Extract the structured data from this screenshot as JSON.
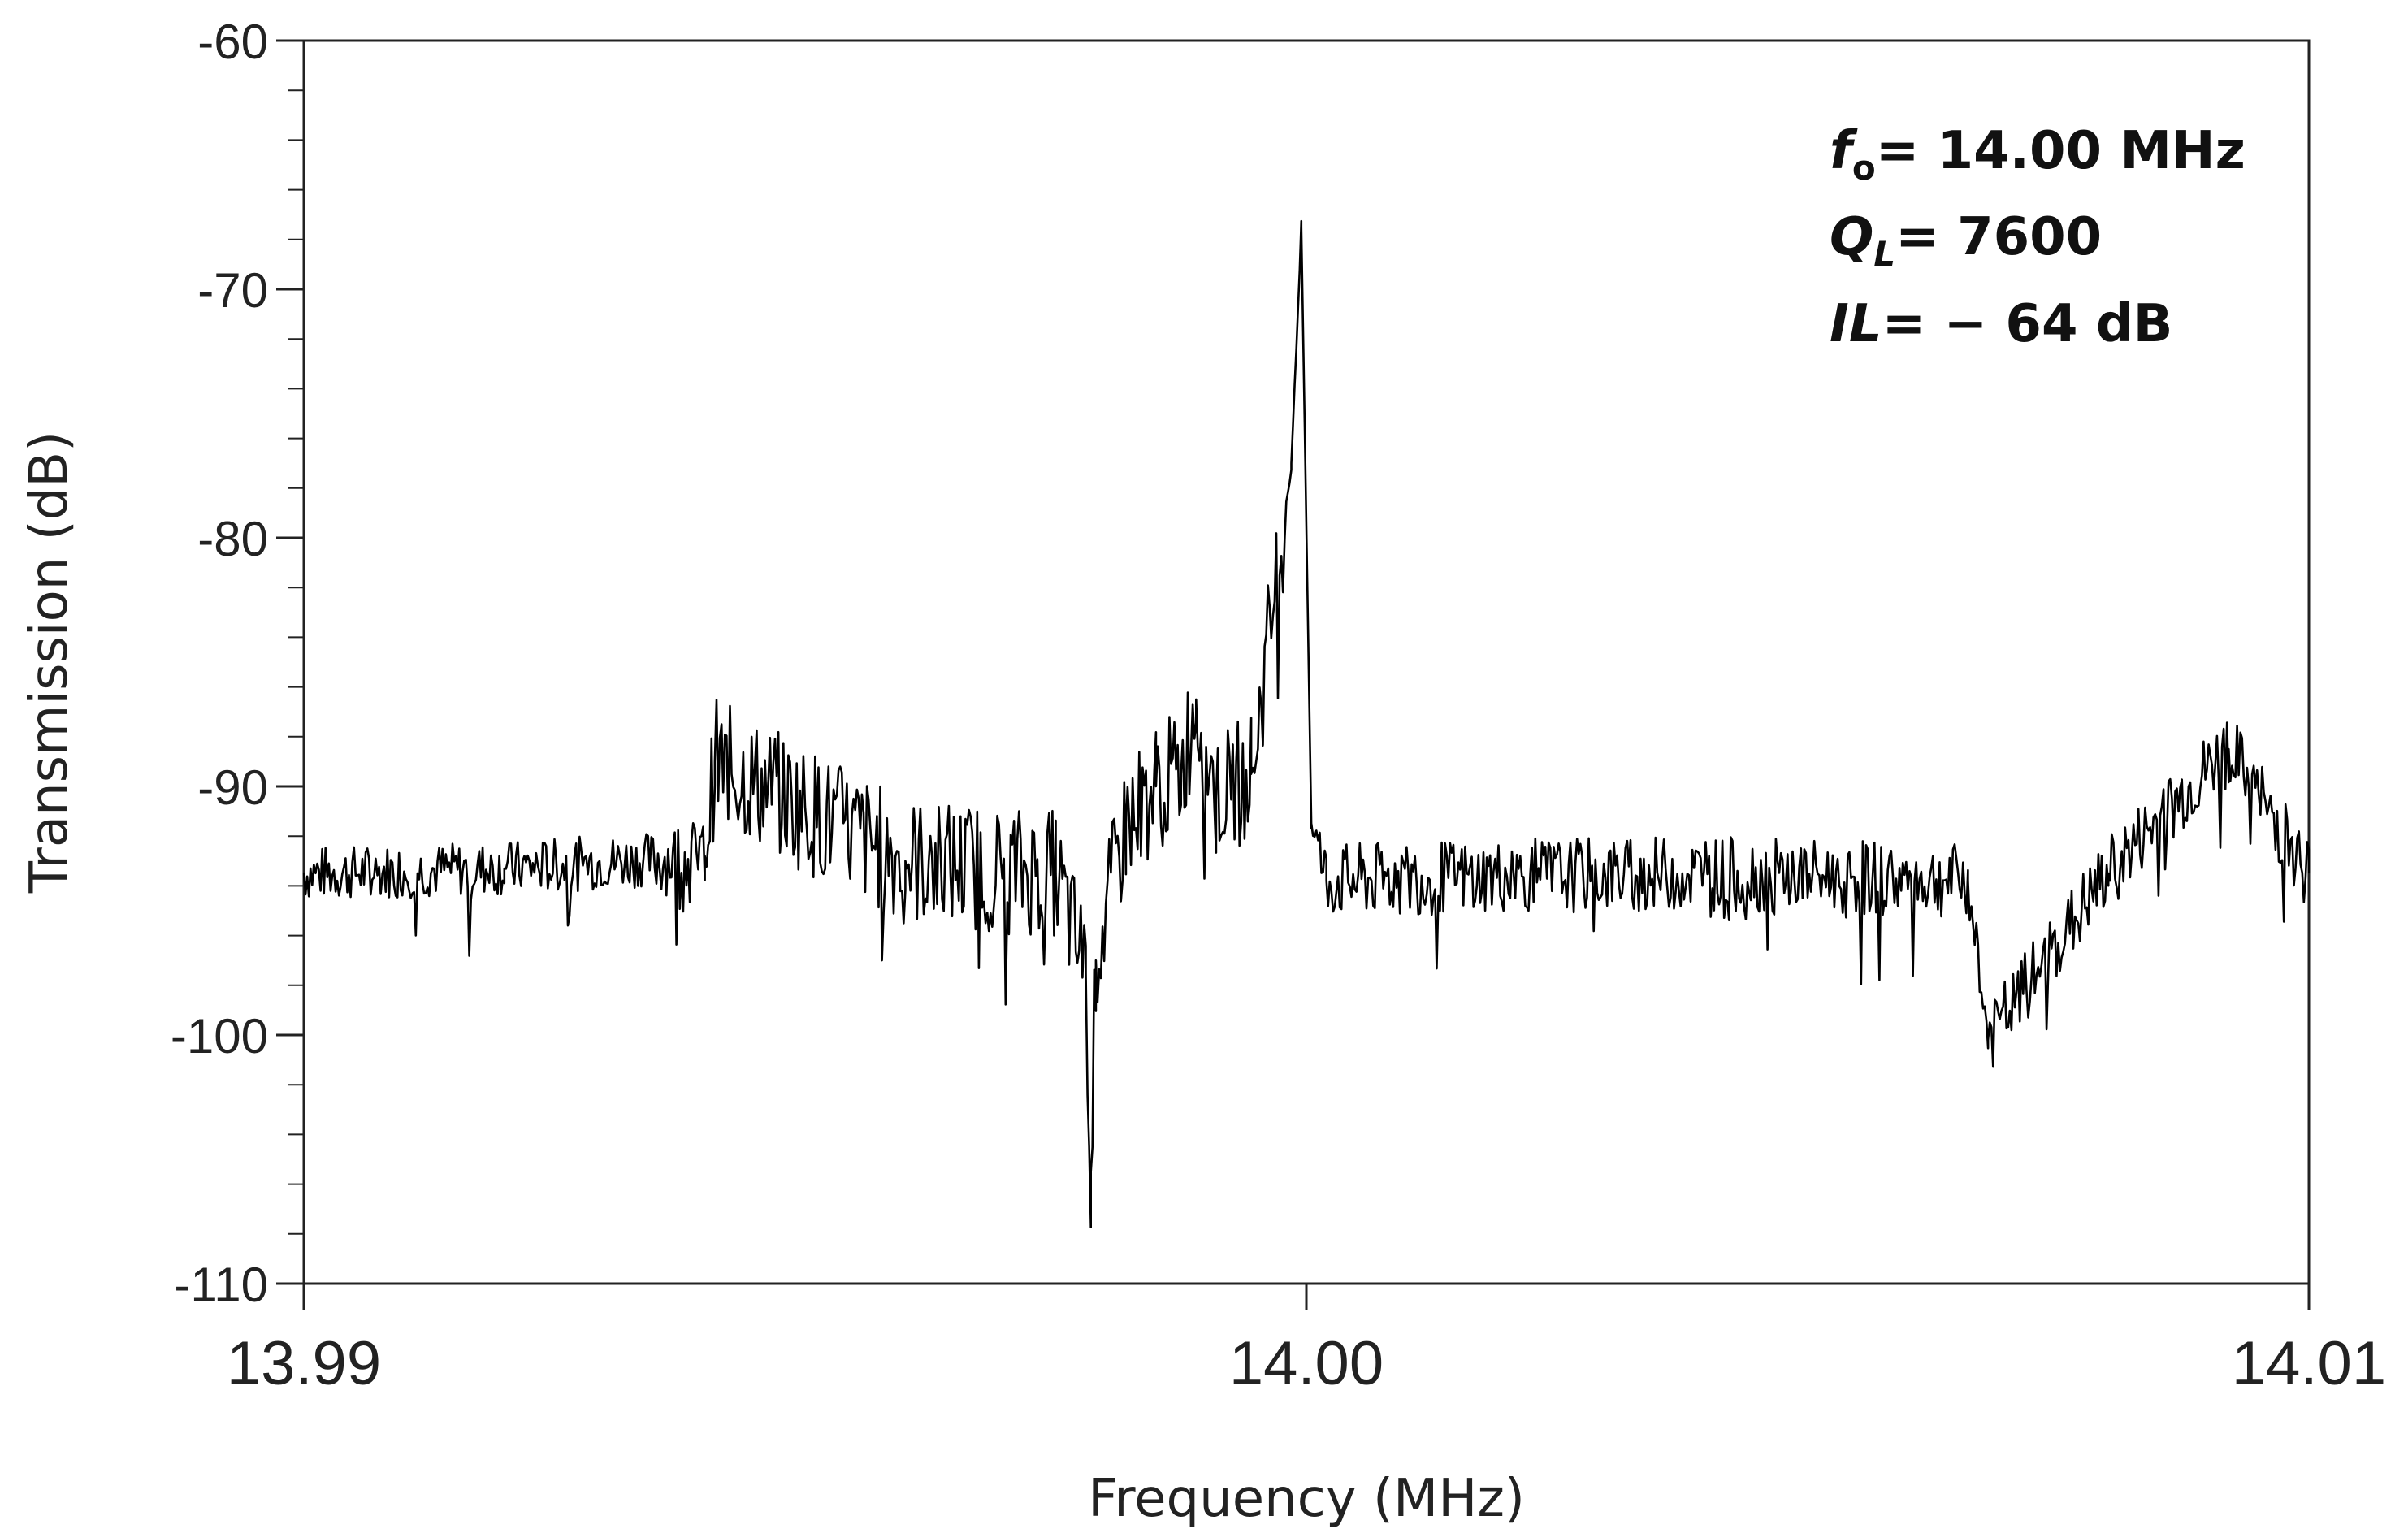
{
  "chart_data": {
    "type": "line",
    "xlabel": "Frequency (MHz)",
    "ylabel": "Transmission (dB)",
    "xlim": [
      13.99,
      14.01
    ],
    "ylim": [
      -110,
      -60
    ],
    "x_ticks": [
      {
        "value": 13.99,
        "label": "13.99"
      },
      {
        "value": 14.0,
        "label": "14.00"
      },
      {
        "value": 14.01,
        "label": "14.01"
      }
    ],
    "y_ticks": [
      {
        "value": -60,
        "label": "-60"
      },
      {
        "value": -70,
        "label": "-70"
      },
      {
        "value": -80,
        "label": "-80"
      },
      {
        "value": -90,
        "label": "-90"
      },
      {
        "value": -100,
        "label": "-100"
      },
      {
        "value": -110,
        "label": "-110"
      }
    ],
    "y_minor_step": 2,
    "grid": false,
    "legend": "none",
    "annotations": [
      {
        "italic": "f",
        "sub": "o",
        "text": "= 14.00 MHz"
      },
      {
        "italic": "Q",
        "sub": "L",
        "text": "= 7600"
      },
      {
        "italic": "IL",
        "sub": "",
        "text": "= − 64 dB"
      }
    ],
    "series": [
      {
        "color": "#000000",
        "noise_floor": -93.2,
        "x": [
          13.99,
          13.992,
          13.994,
          13.9941,
          13.996,
          13.9975,
          13.9978,
          13.99785,
          13.9979,
          13.9982,
          13.9985,
          13.99875,
          13.9989,
          13.9991,
          13.99925,
          13.99945,
          13.99985,
          13.99995,
          14.00005,
          14.0002,
          14.002,
          14.004,
          14.0066,
          14.0068,
          14.008,
          14.0092,
          14.01
        ],
        "y": [
          -93.5,
          -93.3,
          -92.8,
          -89.0,
          -93.0,
          -93.5,
          -97.5,
          -105.5,
          -97.0,
          -91.5,
          -90.0,
          -89.5,
          -86.5,
          -90.5,
          -90.0,
          -89.5,
          -77.0,
          -67.5,
          -91.5,
          -93.8,
          -93.6,
          -93.5,
          -93.8,
          -100.2,
          -93.5,
          -88.5,
          -93.5
        ]
      }
    ]
  }
}
